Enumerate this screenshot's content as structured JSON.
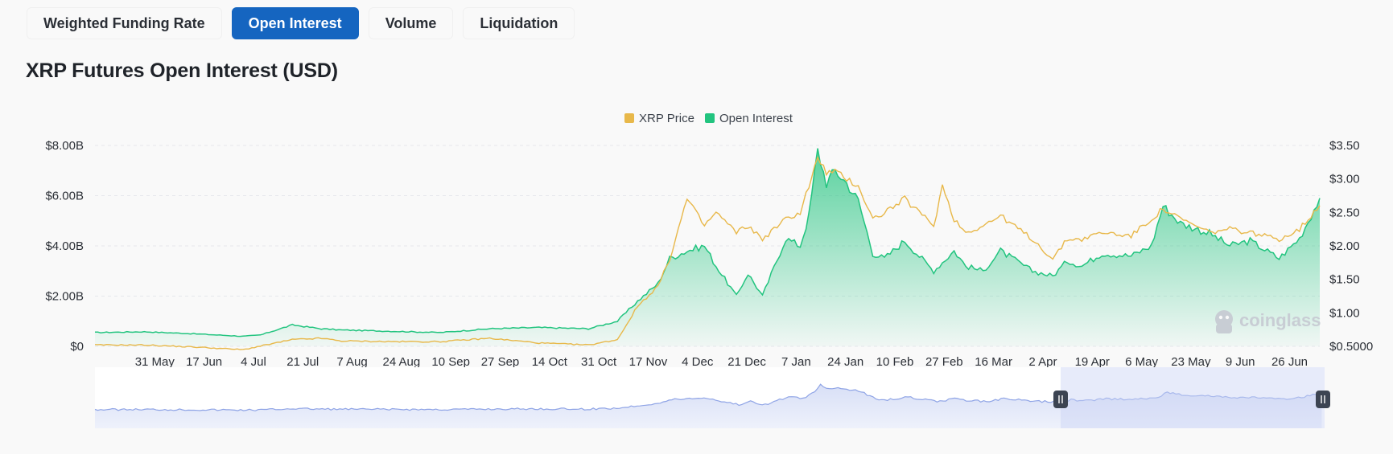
{
  "tabs": [
    {
      "label": "Weighted Funding Rate",
      "active": false
    },
    {
      "label": "Open Interest",
      "active": true
    },
    {
      "label": "Volume",
      "active": false
    },
    {
      "label": "Liquidation",
      "active": false
    }
  ],
  "page_title": "XRP Futures Open Interest (USD)",
  "watermark": "coinglass",
  "colors": {
    "price": "#e8b84a",
    "oi": "#22c47f",
    "accent": "#1565c0",
    "navigator": "#8fa4e6"
  },
  "chart_data": {
    "type": "area",
    "title": "XRP Futures Open Interest (USD)",
    "legend": [
      {
        "name": "XRP Price",
        "color": "#e8b84a"
      },
      {
        "name": "Open Interest",
        "color": "#22c47f"
      }
    ],
    "legend_position": "top-center",
    "x_ticks": [
      "31 May",
      "17 Jun",
      "4 Jul",
      "21 Jul",
      "7 Aug",
      "24 Aug",
      "10 Sep",
      "27 Sep",
      "14 Oct",
      "31 Oct",
      "17 Nov",
      "4 Dec",
      "21 Dec",
      "7 Jan",
      "24 Jan",
      "10 Feb",
      "27 Feb",
      "16 Mar",
      "2 Apr",
      "19 Apr",
      "6 May",
      "23 May",
      "9 Jun",
      "26 Jun"
    ],
    "y_left_ticks": [
      "$0",
      "$2.00B",
      "$4.00B",
      "$6.00B",
      "$8.00B"
    ],
    "y_left_range": [
      0,
      8
    ],
    "y_right_ticks": [
      "$0.5000",
      "$1.00",
      "$1.50",
      "$2.00",
      "$2.50",
      "$3.00",
      "$3.50"
    ],
    "y_right_range": [
      0.5,
      3.5
    ],
    "grid": true,
    "series": [
      {
        "name": "Open Interest",
        "unit": "USD billions",
        "axis": "left",
        "points": [
          [
            "14 May",
            0.55
          ],
          [
            "31 May",
            0.58
          ],
          [
            "17 Jun",
            0.5
          ],
          [
            "4 Jul",
            0.4
          ],
          [
            "10 Jul",
            0.45
          ],
          [
            "21 Jul",
            0.85
          ],
          [
            "31 Jul",
            0.7
          ],
          [
            "7 Aug",
            0.65
          ],
          [
            "24 Aug",
            0.6
          ],
          [
            "10 Sep",
            0.55
          ],
          [
            "27 Sep",
            0.7
          ],
          [
            "14 Oct",
            0.75
          ],
          [
            "31 Oct",
            0.7
          ],
          [
            "10 Nov",
            1.0
          ],
          [
            "17 Nov",
            1.8
          ],
          [
            "24 Nov",
            2.5
          ],
          [
            "28 Nov",
            3.5
          ],
          [
            "4 Dec",
            3.8
          ],
          [
            "10 Dec",
            4.0
          ],
          [
            "14 Dec",
            3.2
          ],
          [
            "21 Dec",
            2.0
          ],
          [
            "25 Dec",
            2.9
          ],
          [
            "30 Dec",
            2.0
          ],
          [
            "7 Jan",
            4.3
          ],
          [
            "12 Jan",
            4.0
          ],
          [
            "15 Jan",
            5.2
          ],
          [
            "18 Jan",
            7.8
          ],
          [
            "21 Jan",
            6.5
          ],
          [
            "24 Jan",
            7.0
          ],
          [
            "28 Jan",
            6.5
          ],
          [
            "1 Feb",
            5.8
          ],
          [
            "6 Feb",
            3.7
          ],
          [
            "10 Feb",
            3.5
          ],
          [
            "17 Feb",
            4.2
          ],
          [
            "27 Feb",
            3.0
          ],
          [
            "6 Mar",
            3.8
          ],
          [
            "10 Mar",
            3.2
          ],
          [
            "16 Mar",
            3.0
          ],
          [
            "22 Mar",
            3.8
          ],
          [
            "2 Apr",
            3.0
          ],
          [
            "9 Apr",
            2.8
          ],
          [
            "14 Apr",
            3.4
          ],
          [
            "19 Apr",
            3.2
          ],
          [
            "26 Apr",
            3.7
          ],
          [
            "6 May",
            3.6
          ],
          [
            "13 May",
            4.0
          ],
          [
            "17 May",
            5.6
          ],
          [
            "23 May",
            4.9
          ],
          [
            "2 Jun",
            4.5
          ],
          [
            "9 Jun",
            4.0
          ],
          [
            "16 Jun",
            4.2
          ],
          [
            "26 Jun",
            3.5
          ],
          [
            "3 Jul",
            4.3
          ],
          [
            "10 Jul",
            5.9
          ]
        ]
      },
      {
        "name": "XRP Price",
        "unit": "USD",
        "axis": "right",
        "points": [
          [
            "14 May",
            0.52
          ],
          [
            "31 May",
            0.52
          ],
          [
            "17 Jun",
            0.49
          ],
          [
            "4 Jul",
            0.45
          ],
          [
            "21 Jul",
            0.6
          ],
          [
            "31 Jul",
            0.62
          ],
          [
            "7 Aug",
            0.58
          ],
          [
            "24 Aug",
            0.57
          ],
          [
            "10 Sep",
            0.57
          ],
          [
            "27 Sep",
            0.62
          ],
          [
            "14 Oct",
            0.55
          ],
          [
            "31 Oct",
            0.52
          ],
          [
            "10 Nov",
            0.6
          ],
          [
            "17 Nov",
            1.1
          ],
          [
            "24 Nov",
            1.4
          ],
          [
            "28 Nov",
            1.8
          ],
          [
            "4 Dec",
            2.7
          ],
          [
            "10 Dec",
            2.3
          ],
          [
            "14 Dec",
            2.5
          ],
          [
            "21 Dec",
            2.2
          ],
          [
            "25 Dec",
            2.3
          ],
          [
            "30 Dec",
            2.1
          ],
          [
            "7 Jan",
            2.4
          ],
          [
            "12 Jan",
            2.5
          ],
          [
            "15 Jan",
            2.9
          ],
          [
            "18 Jan",
            3.3
          ],
          [
            "21 Jan",
            3.1
          ],
          [
            "24 Jan",
            3.1
          ],
          [
            "28 Jan",
            3.0
          ],
          [
            "1 Feb",
            2.9
          ],
          [
            "6 Feb",
            2.4
          ],
          [
            "10 Feb",
            2.5
          ],
          [
            "17 Feb",
            2.7
          ],
          [
            "27 Feb",
            2.3
          ],
          [
            "2 Mar",
            2.9
          ],
          [
            "6 Mar",
            2.4
          ],
          [
            "10 Mar",
            2.2
          ],
          [
            "16 Mar",
            2.3
          ],
          [
            "22 Mar",
            2.45
          ],
          [
            "2 Apr",
            2.1
          ],
          [
            "9 Apr",
            1.8
          ],
          [
            "14 Apr",
            2.1
          ],
          [
            "19 Apr",
            2.1
          ],
          [
            "26 Apr",
            2.2
          ],
          [
            "6 May",
            2.15
          ],
          [
            "13 May",
            2.4
          ],
          [
            "17 May",
            2.55
          ],
          [
            "23 May",
            2.4
          ],
          [
            "2 Jun",
            2.2
          ],
          [
            "9 Jun",
            2.25
          ],
          [
            "16 Jun",
            2.2
          ],
          [
            "26 Jun",
            2.1
          ],
          [
            "3 Jul",
            2.25
          ],
          [
            "10 Jul",
            2.6
          ]
        ]
      }
    ]
  }
}
